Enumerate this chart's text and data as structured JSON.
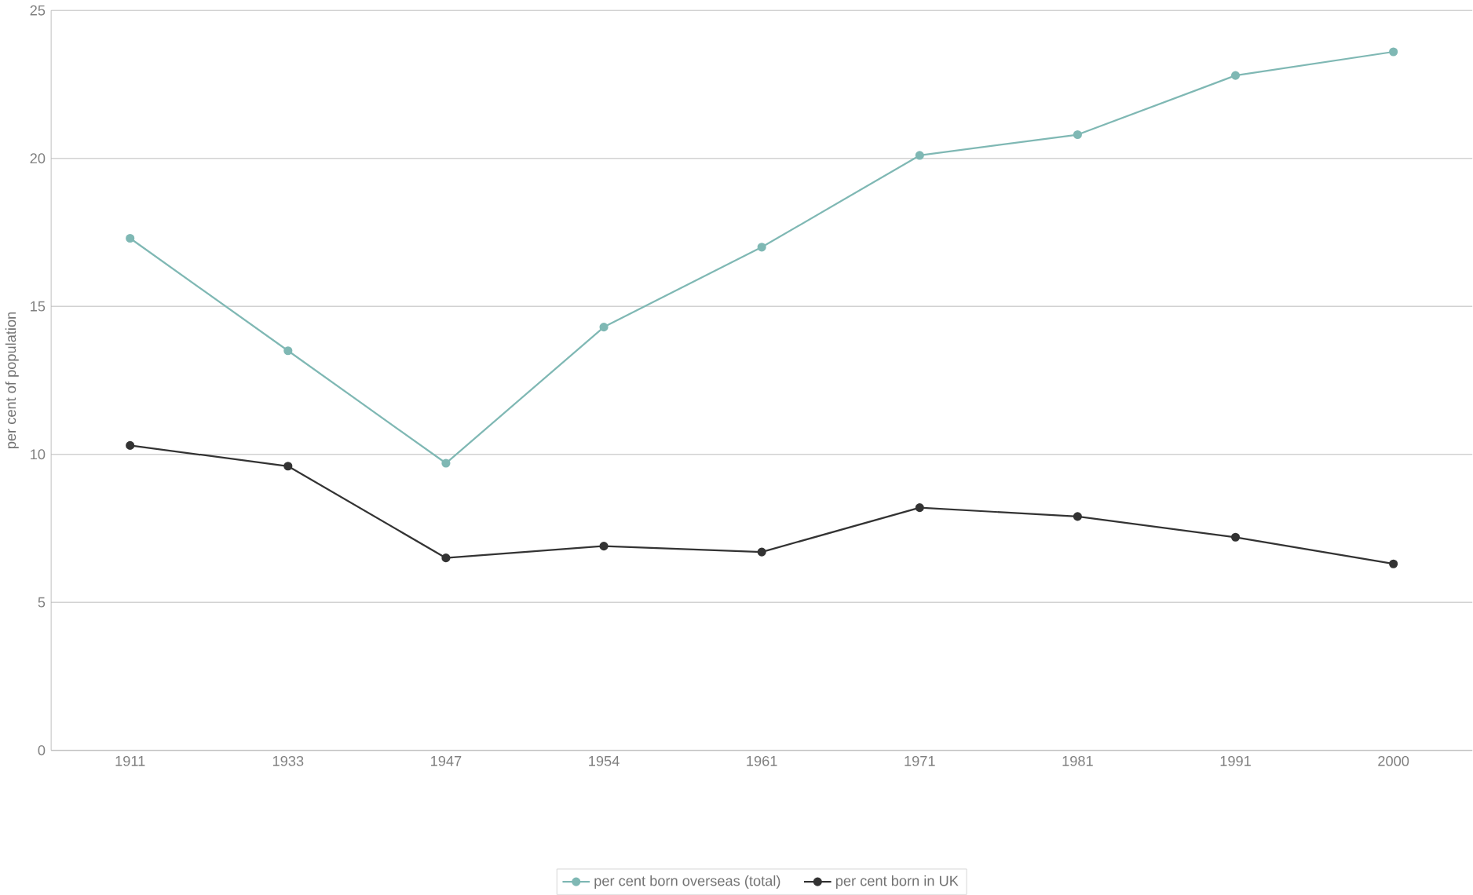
{
  "chart_data": {
    "type": "line",
    "ylabel": "per cent of population",
    "categories": [
      "1911",
      "1933",
      "1947",
      "1954",
      "1961",
      "1971",
      "1981",
      "1991",
      "2000"
    ],
    "series": [
      {
        "name": "per cent born overseas (total)",
        "color": "#7fb8b4",
        "values": [
          17.3,
          13.5,
          9.7,
          14.3,
          17.0,
          20.1,
          20.8,
          22.8,
          23.6
        ]
      },
      {
        "name": "per cent born in UK",
        "color": "#333333",
        "values": [
          10.3,
          9.6,
          6.5,
          6.9,
          6.7,
          8.2,
          7.9,
          7.2,
          6.3
        ]
      }
    ],
    "ylim": [
      0,
      25
    ],
    "yticks": [
      0,
      5,
      10,
      15,
      20,
      25
    ],
    "grid": "y",
    "legend": "bottom",
    "marker": "circle",
    "line_style": "solid"
  }
}
